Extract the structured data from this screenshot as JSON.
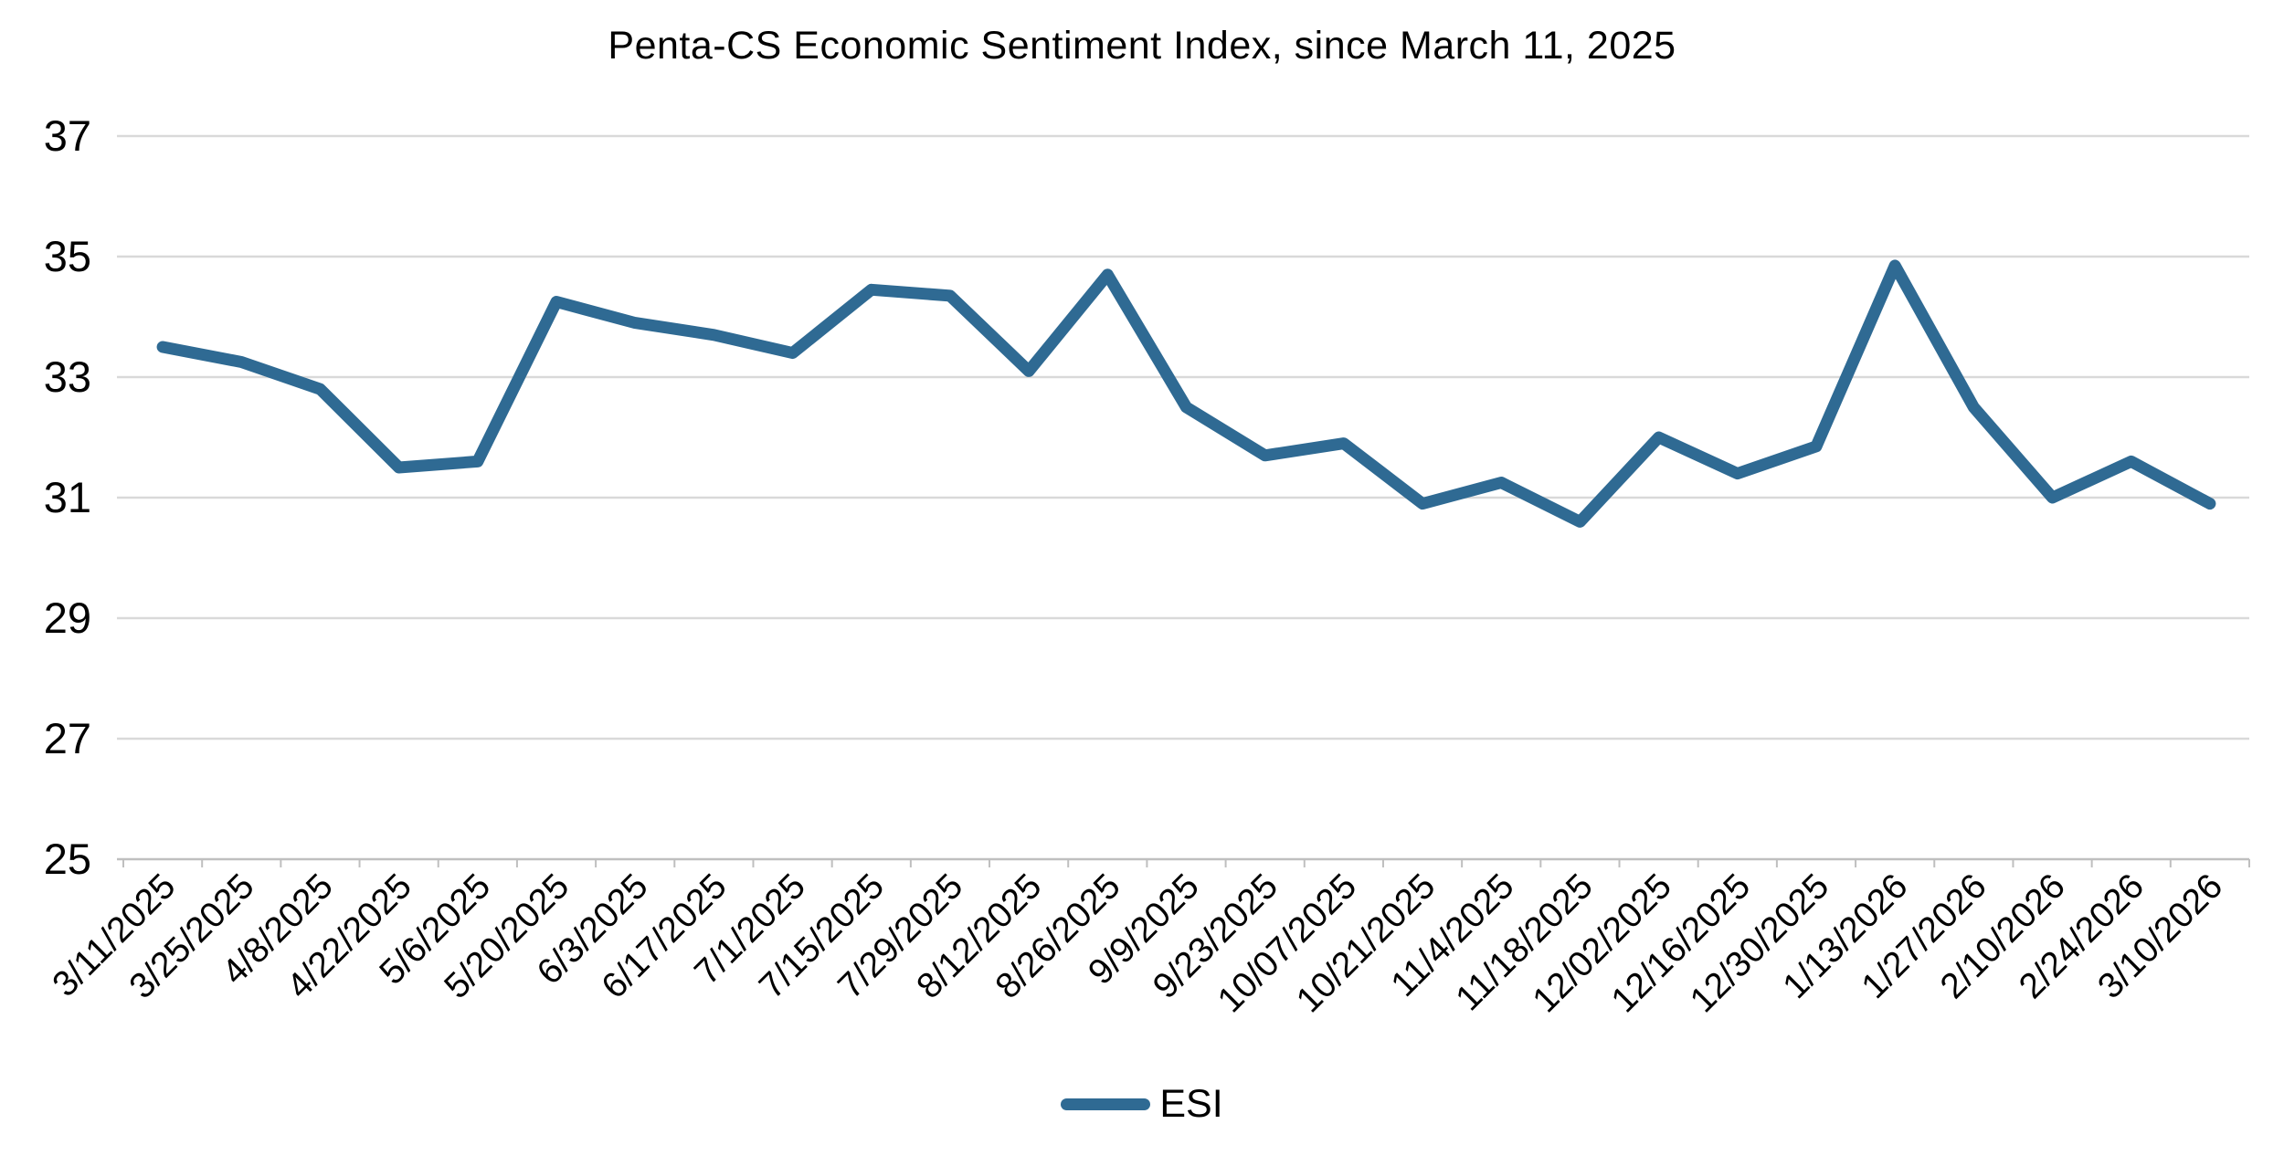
{
  "colors": {
    "line": "#2F6A93",
    "gridline": "#D9D9D9",
    "axis": "#BFBFBF",
    "text": "#000000"
  },
  "legend": {
    "series_label": "ESI"
  },
  "chart_data": {
    "type": "line",
    "title": "Penta-CS Economic Sentiment Index, since March 11, 2025",
    "xlabel": "",
    "ylabel": "",
    "categories": [
      "3/11/2025",
      "3/25/2025",
      "4/8/2025",
      "4/22/2025",
      "5/6/2025",
      "5/20/2025",
      "6/3/2025",
      "6/17/2025",
      "7/1/2025",
      "7/15/2025",
      "7/29/2025",
      "8/12/2025",
      "8/26/2025",
      "9/9/2025",
      "9/23/2025",
      "10/07/2025",
      "10/21/2025",
      "11/4/2025",
      "11/18/2025",
      "12/02/2025",
      "12/16/2025",
      "12/30/2025",
      "1/13/2026",
      "1/27/2026",
      "2/10/2026",
      "2/24/2026",
      "3/10/2026"
    ],
    "series": [
      {
        "name": "ESI",
        "values": [
          33.5,
          33.25,
          32.8,
          31.5,
          31.6,
          34.25,
          33.9,
          33.7,
          33.4,
          34.45,
          34.35,
          33.1,
          34.7,
          32.5,
          31.7,
          31.9,
          30.9,
          31.25,
          30.6,
          32.0,
          31.4,
          31.85,
          34.85,
          32.5,
          31.0,
          31.6,
          30.9
        ]
      }
    ],
    "y_ticks": [
      25,
      27,
      29,
      31,
      33,
      35,
      37
    ],
    "ylim": [
      25,
      37
    ],
    "grid": "horizontal-only",
    "x_tick_label_rotation_deg": 45,
    "legend_position": "bottom"
  }
}
